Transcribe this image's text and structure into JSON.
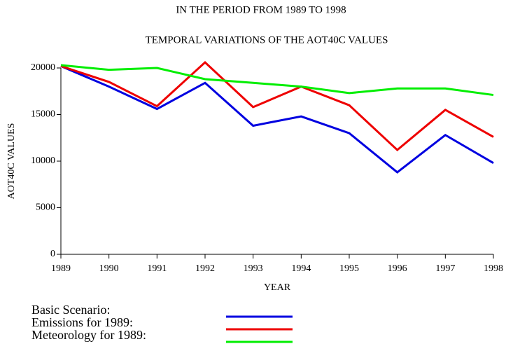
{
  "chart_data": {
    "type": "line",
    "subtitle": "IN THE PERIOD FROM 1989 TO 1998",
    "title": "TEMPORAL VARIATIONS OF THE AOT40C VALUES",
    "x_label": "YEAR",
    "y_label": "AOT40C VALUES",
    "x": [
      1989,
      1990,
      1991,
      1992,
      1993,
      1994,
      1995,
      1996,
      1997,
      1998
    ],
    "series": [
      {
        "name": "Basic Scenario:",
        "color": "#0000e0",
        "values": [
          20200,
          18000,
          15600,
          18400,
          13800,
          14800,
          13000,
          8800,
          12800,
          9800
        ]
      },
      {
        "name": "Emissions for 1989:",
        "color": "#ee0000",
        "values": [
          20200,
          18500,
          15900,
          20600,
          15800,
          18000,
          16000,
          11200,
          15500,
          12600
        ]
      },
      {
        "name": "Meteorology for 1989:",
        "color": "#00ee00",
        "values": [
          20300,
          19800,
          20000,
          18800,
          18400,
          18000,
          17300,
          17800,
          17800,
          17100
        ]
      }
    ],
    "xlim": [
      1989,
      1998
    ],
    "xticks": [
      1989,
      1990,
      1991,
      1992,
      1993,
      1994,
      1995,
      1996,
      1997,
      1998
    ],
    "ylim": [
      0,
      20000
    ],
    "yticks": [
      0,
      5000,
      10000,
      15000,
      20000
    ]
  }
}
